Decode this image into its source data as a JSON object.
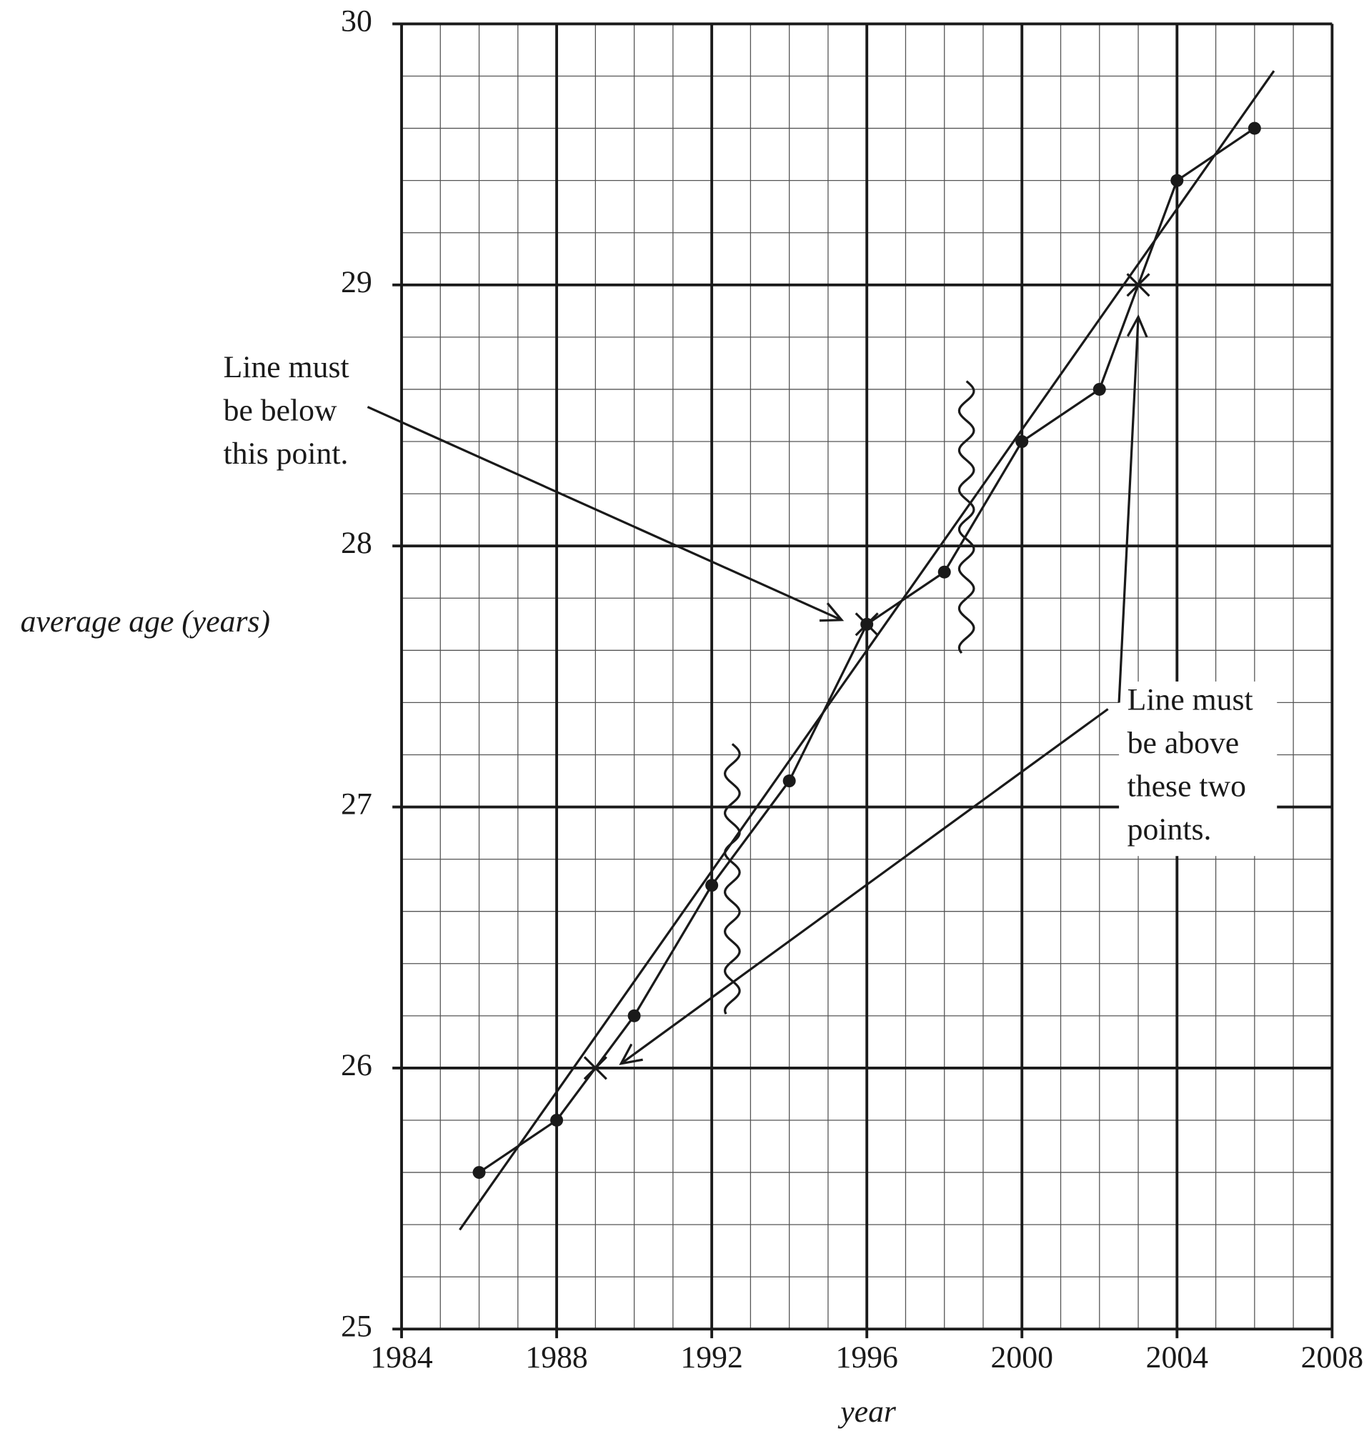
{
  "chart_data": {
    "type": "scatter",
    "x_label": "year",
    "y_label": "average age (years)",
    "xlim": [
      1984,
      2008
    ],
    "xticks": [
      1984,
      1988,
      1992,
      1996,
      2000,
      2004,
      2008
    ],
    "ylim": [
      25,
      30
    ],
    "yticks": [
      25,
      26,
      27,
      28,
      29,
      30
    ],
    "grid": true,
    "minor_grid_step": {
      "x": 1,
      "y": 0.2
    },
    "color": "#1a1a1a",
    "x": [
      1986,
      1988,
      1990,
      1992,
      1994,
      1996,
      1998,
      2000,
      2002,
      2004,
      2006
    ],
    "series": [
      {
        "values": [
          25.6,
          25.8,
          26.2,
          26.7,
          27.1,
          27.7,
          27.9,
          28.4,
          28.6,
          29.4,
          29.6
        ]
      }
    ],
    "fit_line": {
      "x": [
        1985.5,
        2006.5
      ],
      "y": [
        25.38,
        29.82
      ]
    },
    "crosses": {
      "x": [
        1989,
        1996,
        2003
      ],
      "y": [
        26,
        27.7,
        29
      ]
    },
    "annotations": [
      {
        "lines": [
          "Line must",
          "be below",
          "this point."
        ]
      },
      {
        "lines": [
          "Line must",
          "be above",
          "these two",
          "points."
        ]
      }
    ]
  }
}
